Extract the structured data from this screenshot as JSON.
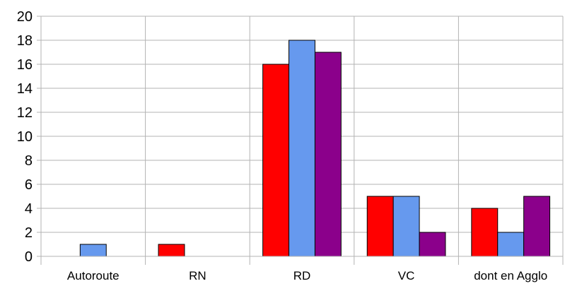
{
  "chart_data": {
    "type": "bar",
    "categories": [
      "Autoroute",
      "RN",
      "RD",
      "VC",
      "dont en Agglo"
    ],
    "series": [
      {
        "values": [
          0,
          1,
          16,
          5,
          4
        ],
        "color": "#ff0000"
      },
      {
        "values": [
          1,
          0,
          18,
          5,
          2
        ],
        "color": "#6699ee"
      },
      {
        "values": [
          0,
          0,
          17,
          2,
          5
        ],
        "color": "#8b008b"
      }
    ],
    "ylim": [
      0,
      20
    ],
    "yticks": [
      "0",
      "2",
      "4",
      "6",
      "8",
      "10",
      "12",
      "14",
      "16",
      "18",
      "20"
    ],
    "grid": true,
    "title": "",
    "xlabel": "",
    "ylabel": ""
  }
}
